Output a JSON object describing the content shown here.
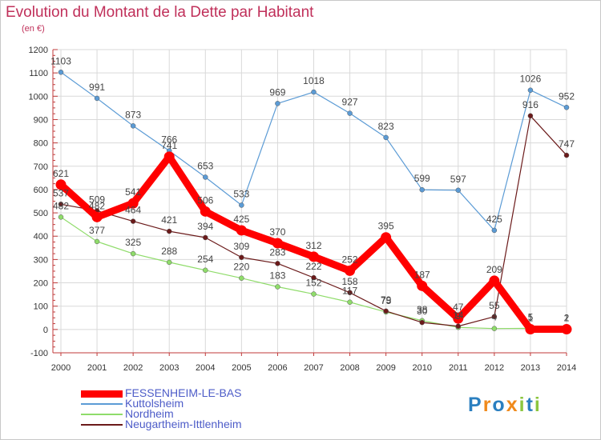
{
  "title": "Evolution du Montant de la Dette par Habitant",
  "subtitle": "(en €)",
  "logo_text": "Proxiti",
  "colors": {
    "title": "#c0305a",
    "legend_text": "#4d5cc8",
    "axis": "#c03a3a",
    "grid": "#d9d9d9"
  },
  "chart_data": {
    "type": "line",
    "title": "Evolution du Montant de la Dette par Habitant",
    "subtitle": "(en €)",
    "xlabel": "",
    "ylabel": "",
    "x": [
      "2000",
      "2001",
      "2002",
      "2003",
      "2004",
      "2005",
      "2006",
      "2007",
      "2008",
      "2009",
      "2010",
      "2011",
      "2012",
      "2013",
      "2014"
    ],
    "ylim": [
      -100,
      1200
    ],
    "yticks": [
      -100,
      0,
      100,
      200,
      300,
      400,
      500,
      600,
      700,
      800,
      900,
      1000,
      1100,
      1200
    ],
    "grid": true,
    "legend_position": "bottom-left",
    "series": [
      {
        "name": "Kuttolsheim",
        "color": "#5b9bd5",
        "values": [
          1103,
          991,
          873,
          766,
          653,
          533,
          969,
          1018,
          927,
          823,
          599,
          597,
          425,
          1026,
          952
        ]
      },
      {
        "name": "Nordheim",
        "color": "#8fdc6a",
        "values": [
          482,
          377,
          325,
          288,
          254,
          220,
          183,
          152,
          117,
          75,
          38,
          9,
          4,
          5,
          2
        ]
      },
      {
        "name": "Neugartheim-Ittlenheim",
        "color": "#6b1a1a",
        "values": [
          537,
          509,
          464,
          421,
          394,
          309,
          283,
          222,
          158,
          79,
          30,
          14,
          55,
          916,
          747
        ]
      },
      {
        "name": "FESSENHEIM-LE-BAS",
        "color": "#ff0000",
        "values": [
          621,
          482,
          541,
          741,
          506,
          425,
          370,
          312,
          252,
          395,
          187,
          47,
          209,
          1,
          1
        ]
      }
    ],
    "legend": [
      "FESSENHEIM-LE-BAS",
      "Kuttolsheim",
      "Nordheim",
      "Neugartheim-Ittlenheim"
    ]
  }
}
